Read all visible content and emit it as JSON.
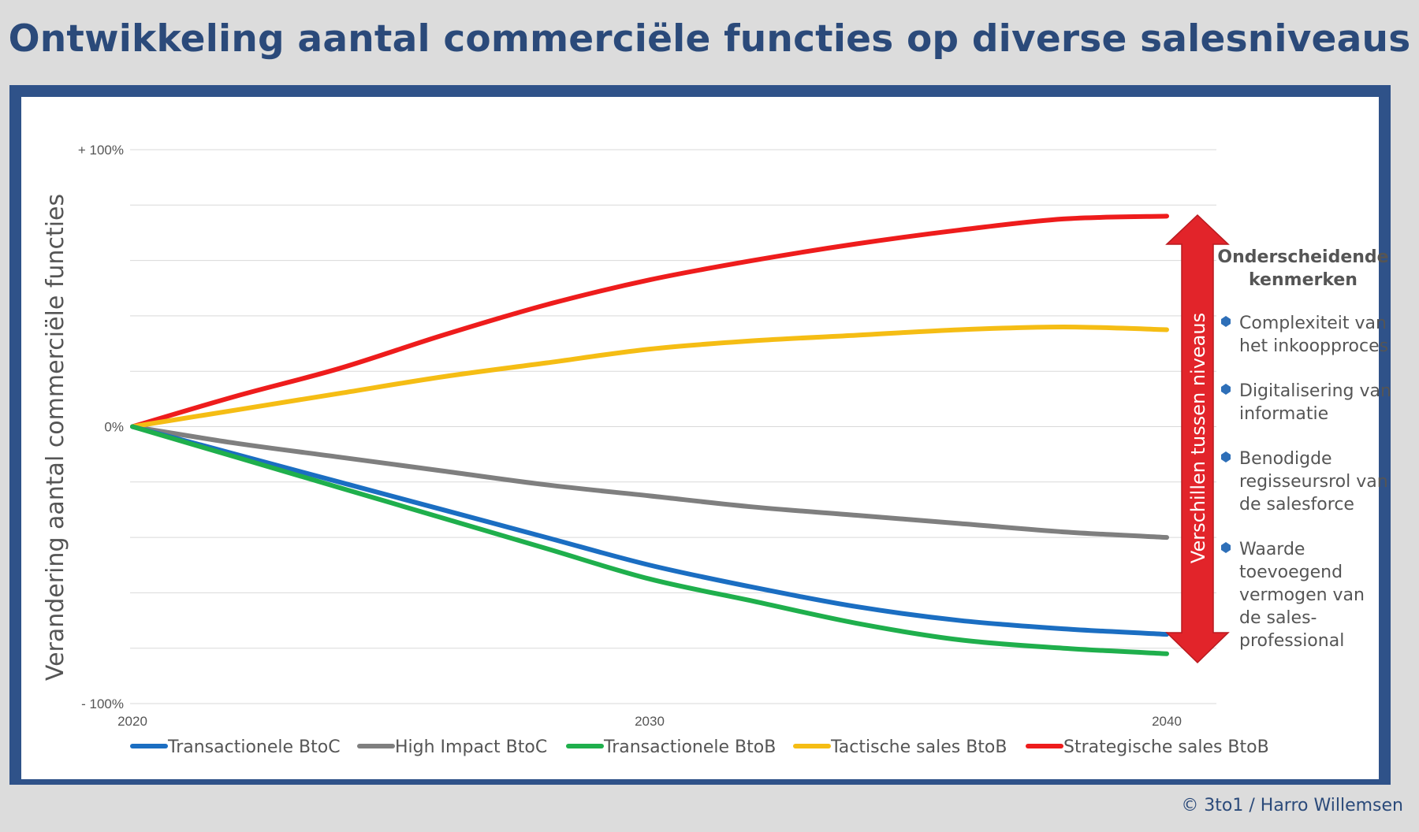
{
  "title": "Ontwikkeling aantal commerciële functies op diverse salesniveaus",
  "credit": "© 3to1 / Harro Willemsen",
  "colors": {
    "title": "#2b4a7a",
    "frame": "#2f5289",
    "arrow": "#e2242a",
    "bullet": "#2e6fb8"
  },
  "chart_data": {
    "type": "line",
    "ylabel": "Verandering aantal commerciële functies",
    "ylim": [
      -100,
      100
    ],
    "yticks": [
      {
        "value": 100,
        "label": "+ 100%"
      },
      {
        "value": 0,
        "label": "0%"
      },
      {
        "value": -100,
        "label": "- 100%"
      }
    ],
    "xlim": [
      2020,
      2040
    ],
    "xticks": [
      {
        "value": 2020,
        "label": "2020"
      },
      {
        "value": 2030,
        "label": "2030"
      },
      {
        "value": 2040,
        "label": "2040"
      }
    ],
    "grid": "horizontal",
    "legend_position": "bottom",
    "x": [
      2020,
      2022,
      2024,
      2026,
      2028,
      2030,
      2032,
      2034,
      2036,
      2038,
      2040
    ],
    "series": [
      {
        "name": "Transactionele BtoC",
        "color": "#1b6ec2",
        "values": [
          0,
          -10,
          -20,
          -30,
          -40,
          -50,
          -58,
          -65,
          -70,
          -73,
          -75
        ]
      },
      {
        "name": "High Impact BtoC",
        "color": "#7f7f7f",
        "values": [
          0,
          -6,
          -11,
          -16,
          -21,
          -25,
          -29,
          -32,
          -35,
          -38,
          -40
        ]
      },
      {
        "name": "Transactionele BtoB",
        "color": "#1faf4c",
        "values": [
          0,
          -11,
          -22,
          -33,
          -44,
          -55,
          -63,
          -71,
          -77,
          -80,
          -82
        ]
      },
      {
        "name": "Tactische sales BtoB",
        "color": "#f5bd14",
        "values": [
          0,
          6,
          12,
          18,
          23,
          28,
          31,
          33,
          35,
          36,
          35
        ]
      },
      {
        "name": "Strategische sales BtoB",
        "color": "#ee1c1c",
        "values": [
          0,
          11,
          21,
          33,
          44,
          53,
          60,
          66,
          71,
          75,
          76
        ]
      }
    ],
    "annotation": "Verschillen tussen niveaus"
  },
  "side_panel": {
    "heading_line1": "Onderscheidende",
    "heading_line2": "kenmerken",
    "items": [
      {
        "line1": "Complexiteit van",
        "line2": "het inkoopproces"
      },
      {
        "line1": "Digitalisering van",
        "line2": "informatie"
      },
      {
        "line1": "Benodigde",
        "line2": "regisseursrol van",
        "line3": "de salesforce"
      },
      {
        "line1": "Waarde",
        "line2": "toevoegend",
        "line3": "vermogen van",
        "line4": "de sales-",
        "line5": "professional"
      }
    ]
  }
}
